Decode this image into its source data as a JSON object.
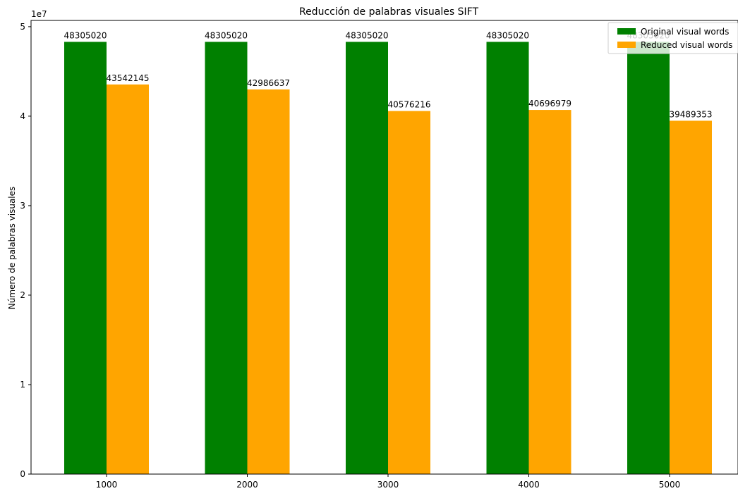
{
  "chart_data": {
    "type": "bar",
    "title": "Reducción de palabras visuales SIFT",
    "xlabel": "",
    "ylabel": "Número de palabras visuales",
    "scale_label": "1e7",
    "categories": [
      "1000",
      "2000",
      "3000",
      "4000",
      "5000"
    ],
    "series": [
      {
        "name": "Original visual words",
        "color": "#008000",
        "values": [
          48305020,
          48305020,
          48305020,
          48305020,
          48305020
        ]
      },
      {
        "name": "Reduced visual words",
        "color": "#ffa500",
        "values": [
          43542145,
          42986637,
          40576216,
          40696979,
          39489353
        ]
      }
    ],
    "ylim": [
      0,
      50700000
    ],
    "yticks": [
      0,
      10000000,
      20000000,
      30000000,
      40000000,
      50000000
    ],
    "ytick_labels": [
      "0",
      "1",
      "2",
      "3",
      "4",
      "5"
    ],
    "grid": false,
    "legend_position": "top-right"
  }
}
